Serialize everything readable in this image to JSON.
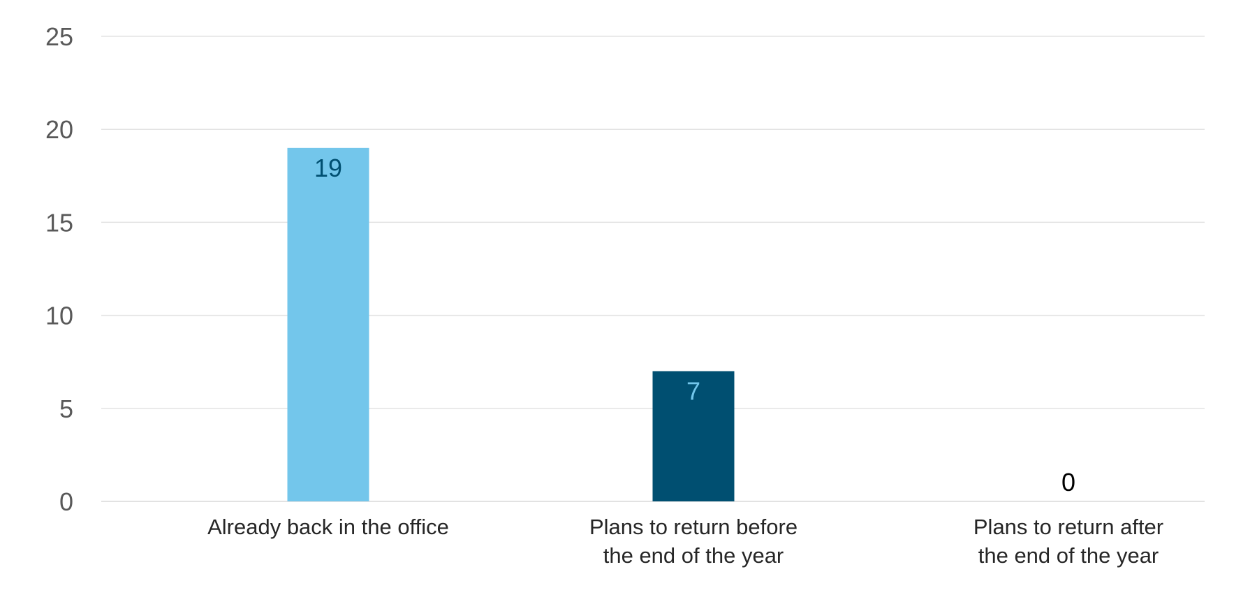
{
  "chart_data": {
    "type": "bar",
    "categories": [
      [
        "Already back in the office"
      ],
      [
        "Plans to return before",
        "the end of the year"
      ],
      [
        "Plans to return after",
        "the end of the year"
      ]
    ],
    "values": [
      19,
      7,
      0
    ],
    "data_labels": [
      "19",
      "7",
      "0"
    ],
    "title": "",
    "xlabel": "",
    "ylabel": "",
    "ylim": [
      0,
      25
    ],
    "yticks": [
      0,
      5,
      10,
      15,
      20,
      25
    ],
    "grid": true,
    "legend": "none",
    "bar_colors": [
      "#73c6eb",
      "#004f71",
      "#73c6eb"
    ],
    "label_colors": [
      "#004f71",
      "#73c6eb",
      "#000000"
    ]
  }
}
